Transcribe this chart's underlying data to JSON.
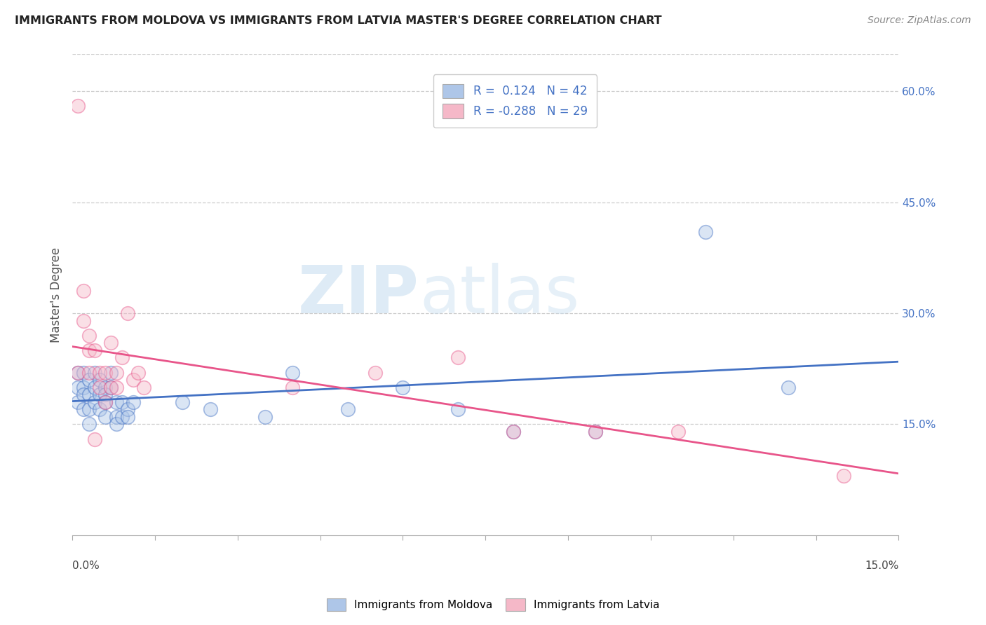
{
  "title": "IMMIGRANTS FROM MOLDOVA VS IMMIGRANTS FROM LATVIA MASTER'S DEGREE CORRELATION CHART",
  "source": "Source: ZipAtlas.com",
  "ylabel": "Master's Degree",
  "legend_label1": "Immigrants from Moldova",
  "legend_label2": "Immigrants from Latvia",
  "R1": 0.124,
  "N1": 42,
  "R2": -0.288,
  "N2": 29,
  "color1": "#aec6e8",
  "color2": "#f5b8c8",
  "line_color1": "#4472c4",
  "line_color2": "#e8558a",
  "xlim": [
    0.0,
    0.15
  ],
  "ylim": [
    0.0,
    0.65
  ],
  "yticks_right": [
    0.15,
    0.3,
    0.45,
    0.6
  ],
  "ytick_labels_right": [
    "15.0%",
    "30.0%",
    "45.0%",
    "60.0%"
  ],
  "moldova_x": [
    0.001,
    0.001,
    0.001,
    0.002,
    0.002,
    0.002,
    0.002,
    0.003,
    0.003,
    0.003,
    0.003,
    0.004,
    0.004,
    0.004,
    0.005,
    0.005,
    0.005,
    0.006,
    0.006,
    0.006,
    0.006,
    0.007,
    0.007,
    0.008,
    0.008,
    0.008,
    0.009,
    0.009,
    0.01,
    0.01,
    0.011,
    0.02,
    0.025,
    0.035,
    0.04,
    0.05,
    0.06,
    0.07,
    0.08,
    0.095,
    0.115,
    0.13
  ],
  "moldova_y": [
    0.22,
    0.2,
    0.18,
    0.2,
    0.22,
    0.19,
    0.17,
    0.21,
    0.19,
    0.17,
    0.15,
    0.22,
    0.2,
    0.18,
    0.21,
    0.19,
    0.17,
    0.2,
    0.19,
    0.18,
    0.16,
    0.2,
    0.22,
    0.18,
    0.16,
    0.15,
    0.18,
    0.16,
    0.17,
    0.16,
    0.18,
    0.18,
    0.17,
    0.16,
    0.22,
    0.17,
    0.2,
    0.17,
    0.14,
    0.14,
    0.41,
    0.2
  ],
  "latvia_x": [
    0.001,
    0.001,
    0.002,
    0.002,
    0.003,
    0.003,
    0.003,
    0.004,
    0.004,
    0.005,
    0.005,
    0.006,
    0.006,
    0.007,
    0.007,
    0.008,
    0.008,
    0.009,
    0.01,
    0.011,
    0.012,
    0.013,
    0.04,
    0.055,
    0.07,
    0.08,
    0.095,
    0.11,
    0.14
  ],
  "latvia_y": [
    0.58,
    0.22,
    0.33,
    0.29,
    0.25,
    0.27,
    0.22,
    0.25,
    0.13,
    0.22,
    0.2,
    0.22,
    0.18,
    0.26,
    0.2,
    0.22,
    0.2,
    0.24,
    0.3,
    0.21,
    0.22,
    0.2,
    0.2,
    0.22,
    0.24,
    0.14,
    0.14,
    0.14,
    0.08
  ],
  "watermark_zip": "ZIP",
  "watermark_atlas": "atlas",
  "background_color": "#ffffff",
  "grid_color": "#cccccc",
  "dot_size": 200,
  "dot_alpha": 0.45,
  "dot_linewidth": 1.2
}
